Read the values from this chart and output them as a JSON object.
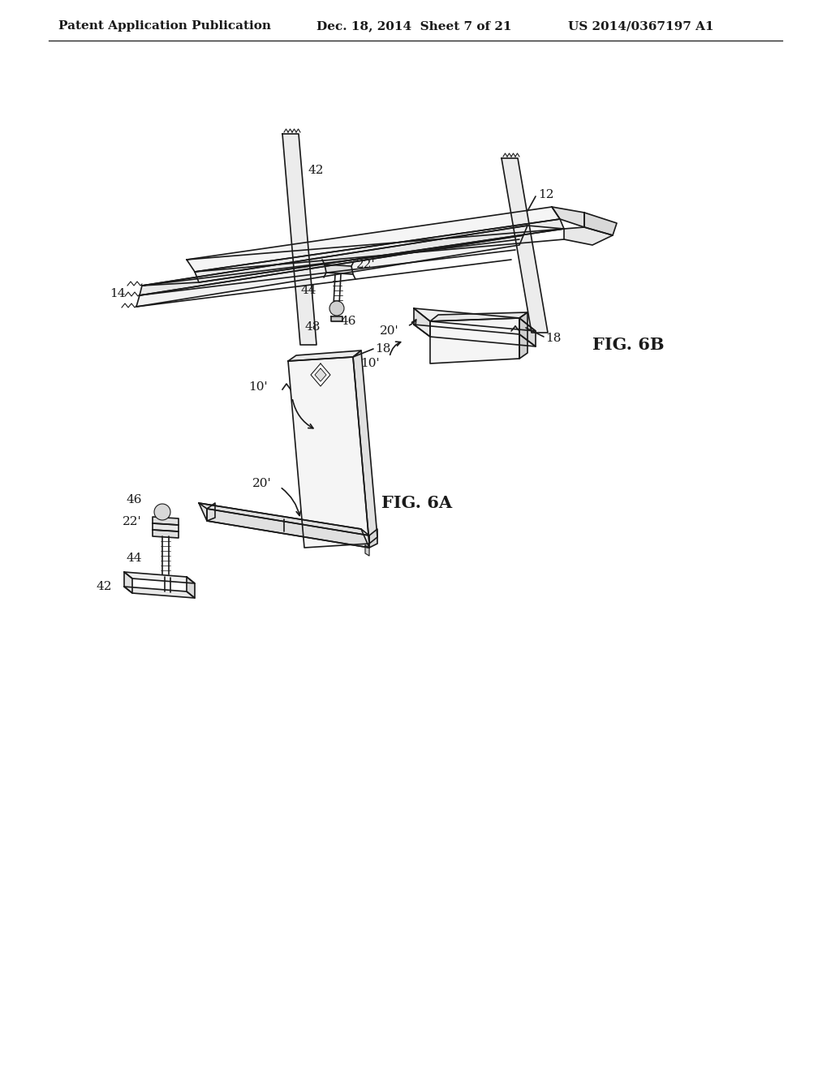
{
  "background_color": "#ffffff",
  "header": {
    "left": "Patent Application Publication",
    "center": "Dec. 18, 2014  Sheet 7 of 21",
    "right": "US 2014/0367197 A1",
    "fontsize": 11
  },
  "fig6b_label": "FIG. 6B",
  "fig6a_label": "FIG. 6A",
  "line_color": "#1a1a1a",
  "label_fontsize": 11,
  "fig_label_fontsize": 15
}
